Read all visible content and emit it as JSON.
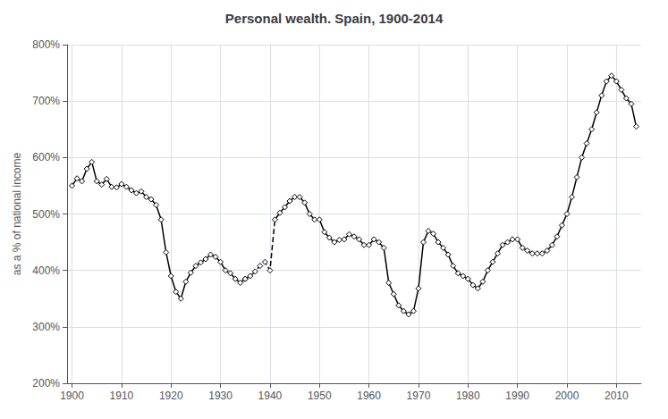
{
  "chart_data": {
    "type": "line",
    "title": "Personal wealth. Spain, 1900-2014",
    "ylabel": "as a % of national income",
    "xlim": [
      1899,
      2015
    ],
    "xticks": [
      1900,
      1910,
      1920,
      1930,
      1940,
      1950,
      1960,
      1970,
      1980,
      1990,
      2000,
      2010
    ],
    "ylim": [
      200,
      800
    ],
    "yticks": [
      {
        "value": 200,
        "label": "200%"
      },
      {
        "value": 300,
        "label": "300%"
      },
      {
        "value": 400,
        "label": "400%"
      },
      {
        "value": 500,
        "label": "500%"
      },
      {
        "value": 600,
        "label": "600%"
      },
      {
        "value": 700,
        "label": "700%"
      },
      {
        "value": 800,
        "label": "800%"
      }
    ],
    "grid": true,
    "series": [
      {
        "color": "#000000",
        "marker": "diamond",
        "line_style": "solid",
        "x": [
          1900,
          1901,
          1902,
          1903,
          1904,
          1905,
          1906,
          1907,
          1908,
          1909,
          1910,
          1911,
          1912,
          1913,
          1914,
          1915,
          1916,
          1917,
          1918,
          1919,
          1920,
          1921,
          1922,
          1923,
          1924,
          1925,
          1926,
          1927,
          1928,
          1929,
          1930,
          1931,
          1932,
          1933,
          1934,
          1935
        ],
        "values": [
          550,
          563,
          558,
          580,
          592,
          558,
          552,
          562,
          548,
          547,
          553,
          548,
          542,
          537,
          540,
          530,
          526,
          516,
          490,
          432,
          390,
          362,
          350,
          380,
          396,
          408,
          414,
          420,
          428,
          424,
          415,
          400,
          395,
          385,
          378,
          385
        ]
      },
      {
        "color": "#000000",
        "marker": "diamond",
        "line_style": "dashed",
        "x": [
          1935,
          1936,
          1937,
          1938,
          1939,
          1940,
          1941,
          1942,
          1943,
          1944
        ],
        "values": [
          385,
          390,
          398,
          408,
          415,
          400,
          490,
          502,
          512,
          523
        ]
      },
      {
        "color": "#000000",
        "marker": "diamond",
        "line_style": "solid",
        "x": [
          1944,
          1945,
          1946,
          1947,
          1948,
          1949,
          1950,
          1951,
          1952,
          1953,
          1954,
          1955,
          1956,
          1957,
          1958,
          1959,
          1960,
          1961,
          1962,
          1963,
          1964,
          1965,
          1966,
          1967,
          1968,
          1969,
          1970,
          1971,
          1972,
          1973,
          1974,
          1975,
          1976,
          1977,
          1978,
          1979,
          1980,
          1981,
          1982,
          1983,
          1984,
          1985,
          1986,
          1987,
          1988,
          1989,
          1990,
          1991,
          1992,
          1993,
          1994,
          1995,
          1996,
          1997,
          1998,
          1999,
          2000,
          2001,
          2002,
          2003,
          2004,
          2005,
          2006,
          2007,
          2008,
          2009,
          2010,
          2011,
          2012,
          2013,
          2014
        ],
        "values": [
          523,
          530,
          530,
          520,
          500,
          490,
          490,
          468,
          458,
          450,
          454,
          455,
          464,
          460,
          455,
          445,
          445,
          455,
          450,
          440,
          378,
          358,
          338,
          328,
          322,
          328,
          368,
          450,
          470,
          465,
          450,
          440,
          428,
          408,
          395,
          390,
          385,
          374,
          368,
          380,
          400,
          415,
          430,
          445,
          450,
          455,
          455,
          440,
          435,
          430,
          430,
          430,
          435,
          445,
          460,
          480,
          500,
          530,
          565,
          600,
          625,
          650,
          680,
          710,
          735,
          745,
          735,
          720,
          705,
          695,
          655
        ]
      }
    ]
  }
}
